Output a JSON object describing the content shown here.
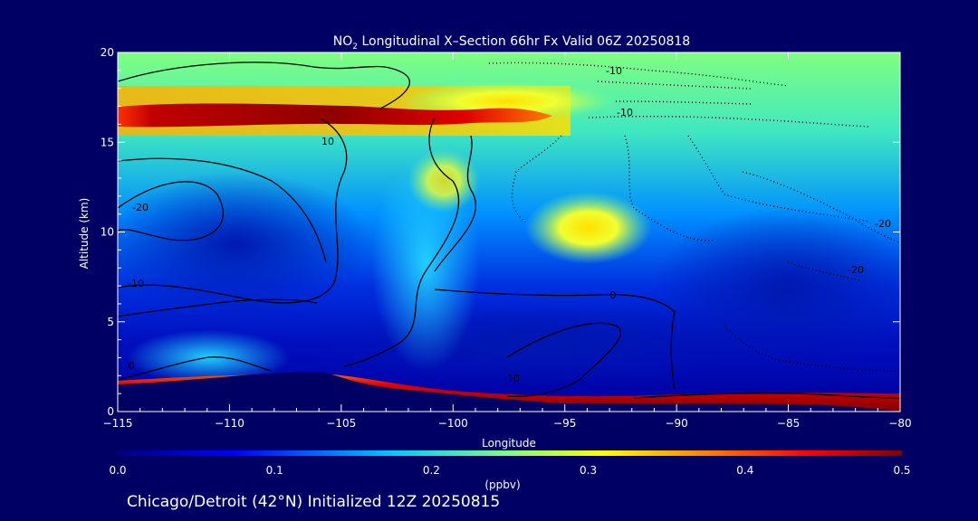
{
  "chart_data": {
    "type": "heatmap",
    "title_prefix": "NO",
    "title_sub": "2",
    "title_rest": " Longitudinal X–Section 66hr  Fx Valid 06Z 20250818",
    "xlabel": "Longitude",
    "ylabel": "Altitude (km)",
    "xlim": [
      -115,
      -80
    ],
    "ylim": [
      0,
      20
    ],
    "x_ticks": [
      -115,
      -110,
      -105,
      -100,
      -95,
      -90,
      -85,
      -80
    ],
    "x_tick_labels": [
      "−115",
      "−110",
      "−105",
      "−100",
      "−95",
      "−90",
      "−85",
      "−80"
    ],
    "y_ticks": [
      0,
      5,
      10,
      15,
      20
    ],
    "y_tick_labels": [
      "0",
      "5",
      "10",
      "15",
      "20"
    ],
    "colorbar": {
      "min": 0.0,
      "max": 0.5,
      "units": "(ppbv)",
      "ticks": [
        0.0,
        0.1,
        0.2,
        0.3,
        0.4,
        0.5
      ],
      "tick_labels": [
        "0.0",
        "0.1",
        "0.2",
        "0.3",
        "0.4",
        "0.5"
      ],
      "colormap": [
        "#000080",
        "#0000ff",
        "#00c8ff",
        "#80ff80",
        "#ffff00",
        "#ff8000",
        "#ff0000",
        "#800000"
      ]
    },
    "field_description": "NO2 mixing ratio (ppbv) by longitude and altitude",
    "features": [
      {
        "name": "tropopause-band",
        "lon_range": [
          -115,
          -97
        ],
        "alt_km": 16.5,
        "value": 0.5
      },
      {
        "name": "upper-green-layer",
        "lon_range": [
          -95,
          -80
        ],
        "alt_km": 17.5,
        "value": 0.25
      },
      {
        "name": "mid-yellow-plume",
        "lon_center": -94,
        "alt_km": 10.5,
        "value": 0.32
      },
      {
        "name": "surface-layer",
        "lon_range": [
          -115,
          -80
        ],
        "alt_km": 0.7,
        "value": 0.5
      }
    ],
    "contour_labels": [
      "-10",
      "-10",
      "10",
      "-20",
      "-10",
      "0",
      "-20",
      "-20",
      "-10",
      "0"
    ]
  },
  "footer": {
    "label": "Chicago/Detroit (42°N) Initialized 12Z 20250815"
  }
}
